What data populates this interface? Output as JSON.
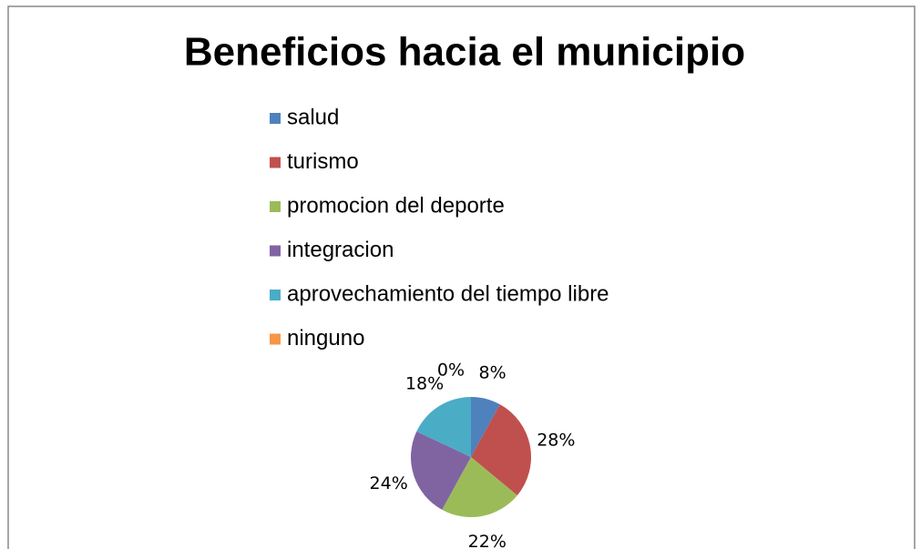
{
  "chart_data": {
    "type": "pie",
    "title": "Beneficios hacia el municipio",
    "categories": [
      "salud",
      "turismo",
      "promocion del deporte",
      "integracion",
      "aprovechamiento del tiempo libre",
      "ninguno"
    ],
    "values": [
      8,
      28,
      22,
      24,
      18,
      0
    ],
    "value_labels": [
      "8%",
      "28%",
      "22%",
      "24%",
      "18%",
      "0%"
    ],
    "colors": [
      "#4f81bd",
      "#c0504d",
      "#9bbb59",
      "#8064a2",
      "#4bacc6",
      "#f79646"
    ],
    "legend": "top"
  }
}
